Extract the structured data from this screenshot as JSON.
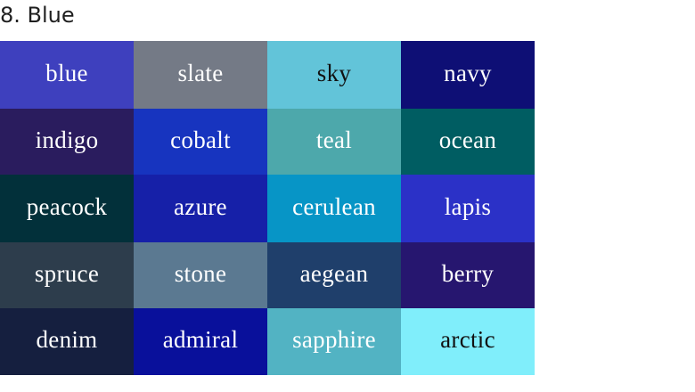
{
  "title": "8. Blue",
  "swatches": [
    {
      "name": "blue",
      "color": "#3E40BE",
      "text_color": "#FFFFFF"
    },
    {
      "name": "slate",
      "color": "#747A86",
      "text_color": "#FFFFFF"
    },
    {
      "name": "sky",
      "color": "#62C4D9",
      "text_color": "#111111"
    },
    {
      "name": "navy",
      "color": "#0E0F75",
      "text_color": "#FFFFFF"
    },
    {
      "name": "indigo",
      "color": "#2A1C5E",
      "text_color": "#FFFFFF"
    },
    {
      "name": "cobalt",
      "color": "#1734BF",
      "text_color": "#FFFFFF"
    },
    {
      "name": "teal",
      "color": "#4DA8AB",
      "text_color": "#FFFFFF"
    },
    {
      "name": "ocean",
      "color": "#005D62",
      "text_color": "#FFFFFF"
    },
    {
      "name": "peacock",
      "color": "#02303A",
      "text_color": "#FFFFFF"
    },
    {
      "name": "azure",
      "color": "#1620A8",
      "text_color": "#FFFFFF"
    },
    {
      "name": "cerulean",
      "color": "#0795C6",
      "text_color": "#FFFFFF"
    },
    {
      "name": "lapis",
      "color": "#2B31C7",
      "text_color": "#FFFFFF"
    },
    {
      "name": "spruce",
      "color": "#2D3D4C",
      "text_color": "#FFFFFF"
    },
    {
      "name": "stone",
      "color": "#5B7991",
      "text_color": "#FFFFFF"
    },
    {
      "name": "aegean",
      "color": "#1F3F6B",
      "text_color": "#FFFFFF"
    },
    {
      "name": "berry",
      "color": "#26166F",
      "text_color": "#FFFFFF"
    },
    {
      "name": "denim",
      "color": "#151F3F",
      "text_color": "#FFFFFF"
    },
    {
      "name": "admiral",
      "color": "#09109B",
      "text_color": "#FFFFFF"
    },
    {
      "name": "sapphire",
      "color": "#52B3C3",
      "text_color": "#FFFFFF"
    },
    {
      "name": "arctic",
      "color": "#80EEFB",
      "text_color": "#111111"
    }
  ]
}
